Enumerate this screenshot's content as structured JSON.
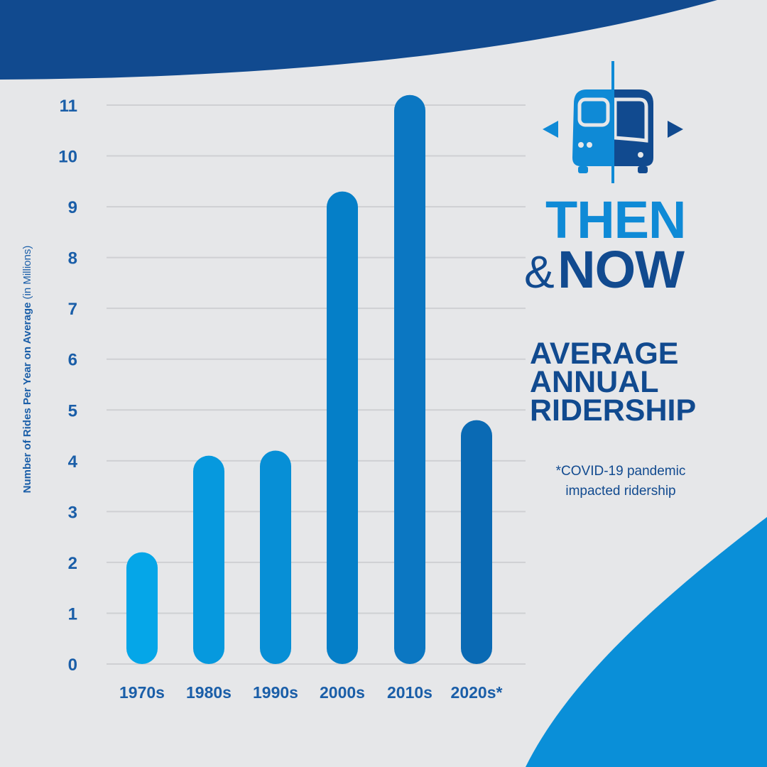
{
  "colors": {
    "background": "#e6e7e9",
    "dark_blue": "#114a8f",
    "bright_blue": "#0f8ad6",
    "tick_blue": "#1a5ea8",
    "gridline": "#cfd0d3"
  },
  "icons": [
    "bus-icon",
    "arrow-left-icon",
    "arrow-right-icon"
  ],
  "header": {
    "then": "THEN",
    "amp": "&",
    "now": "NOW",
    "subtitle_lines": [
      "AVERAGE",
      "ANNUAL",
      "RIDERSHIP"
    ],
    "note_lines": [
      "*COVID-19 pandemic",
      "impacted ridership"
    ]
  },
  "chart_data": {
    "type": "bar",
    "categories": [
      "1970s",
      "1980s",
      "1990s",
      "2000s",
      "2010s",
      "2020s*"
    ],
    "values": [
      2.2,
      4.1,
      4.2,
      9.3,
      11.2,
      4.8
    ],
    "bar_colors": [
      "#05a6e8",
      "#0699de",
      "#078fd6",
      "#057fc8",
      "#0b77c2",
      "#0a6ab4"
    ],
    "ylabel_bold": "Number of Rides Per Year on Average",
    "ylabel_light": " (in Millions)",
    "ylim": [
      0,
      11
    ],
    "yticks": [
      0,
      1,
      2,
      3,
      4,
      5,
      6,
      7,
      8,
      9,
      10,
      11
    ],
    "grid": true
  }
}
